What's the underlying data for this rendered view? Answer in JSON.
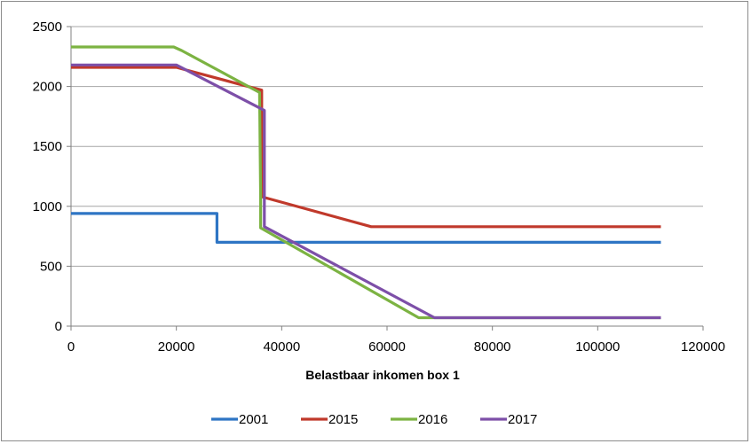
{
  "chart_data": {
    "type": "line",
    "title": "",
    "xlabel": "Belastbaar inkomen box 1",
    "ylabel": "",
    "xlim": [
      0,
      120000
    ],
    "ylim": [
      0,
      2500
    ],
    "x_ticks": [
      0,
      20000,
      40000,
      60000,
      80000,
      100000,
      120000
    ],
    "x_tick_labels": [
      "0",
      "20000",
      "40000",
      "60000",
      "80000",
      "100000",
      "120000"
    ],
    "y_ticks": [
      0,
      500,
      1000,
      1500,
      2000,
      2500
    ],
    "y_tick_labels": [
      "0",
      "500",
      "1000",
      "1500",
      "2000",
      "2500"
    ],
    "grid": "horizontal",
    "legend_position": "bottom",
    "series": [
      {
        "name": "2001",
        "color": "#2e75c4",
        "points": [
          [
            0,
            940
          ],
          [
            27700,
            940
          ],
          [
            27700,
            700
          ],
          [
            112000,
            700
          ]
        ]
      },
      {
        "name": "2015",
        "color": "#c0392b",
        "points": [
          [
            0,
            2160
          ],
          [
            20000,
            2160
          ],
          [
            36200,
            1970
          ],
          [
            36200,
            1080
          ],
          [
            57000,
            830
          ],
          [
            112000,
            830
          ]
        ]
      },
      {
        "name": "2016",
        "color": "#7cb342",
        "points": [
          [
            0,
            2330
          ],
          [
            19500,
            2330
          ],
          [
            21000,
            2300
          ],
          [
            35800,
            1950
          ],
          [
            36000,
            1080
          ],
          [
            36000,
            820
          ],
          [
            66000,
            70
          ],
          [
            112000,
            70
          ]
        ]
      },
      {
        "name": "2017",
        "color": "#7d4fa8",
        "points": [
          [
            0,
            2180
          ],
          [
            20000,
            2180
          ],
          [
            36700,
            1800
          ],
          [
            36700,
            830
          ],
          [
            69000,
            70
          ],
          [
            112000,
            70
          ]
        ]
      }
    ]
  }
}
